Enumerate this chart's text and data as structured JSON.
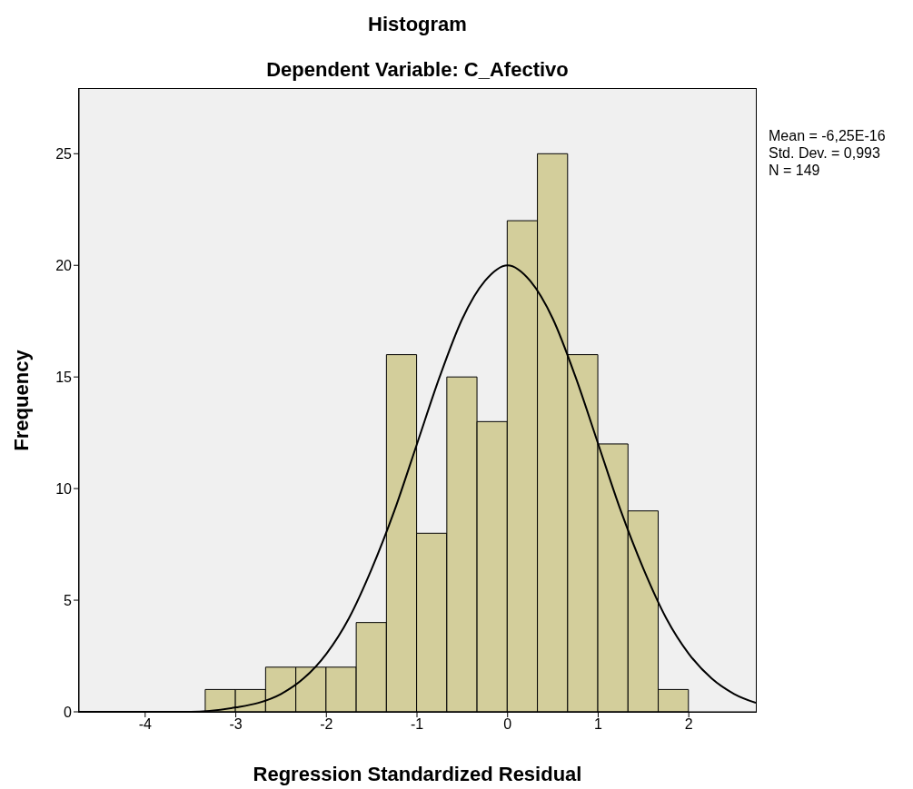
{
  "chart_data": {
    "type": "histogram",
    "title": "Histogram",
    "subtitle": "Dependent Variable: C_Afectivo",
    "xlabel": "Regression Standardized Residual",
    "ylabel": "Frequency",
    "annotations": [
      "Mean = -6,25E-16",
      "Std. Dev. = 0,993",
      "N = 149"
    ],
    "bins": [
      -3.333,
      -3,
      -2.667,
      -2.333,
      -2,
      -1.667,
      -1.333,
      -1,
      -0.667,
      -0.333,
      0,
      0.333,
      0.667,
      1,
      1.333,
      1.667,
      2
    ],
    "values": [
      1,
      1,
      2,
      2,
      2,
      4,
      16,
      8,
      15,
      13,
      22,
      25,
      16,
      12,
      9,
      1
    ],
    "color": "#d3ce9b",
    "series": [
      {
        "type": "line",
        "color": "#000000",
        "x": [
          -4.73,
          -4.5,
          -4,
          -3.5,
          -3,
          -2.75,
          -2.5,
          -2.25,
          -2,
          -1.75,
          -1.5,
          -1.25,
          -1,
          -0.75,
          -0.5,
          -0.25,
          0,
          0.25,
          0.5,
          0.75,
          1,
          1.25,
          1.5,
          1.75,
          2,
          2.25,
          2.5,
          2.74
        ],
        "values": [
          0,
          0,
          0,
          0,
          0.2,
          0.4,
          0.8,
          1.5,
          2.6,
          4.2,
          6.4,
          9,
          12,
          15,
          17.6,
          19.3,
          20,
          19.3,
          17.6,
          15,
          12,
          9,
          6.4,
          4.2,
          2.6,
          1.5,
          0.8,
          0.4
        ]
      }
    ],
    "xlim": [
      -4.73,
      2.74
    ],
    "xticks": [
      -4,
      -3,
      -2,
      -1,
      0,
      1,
      2
    ],
    "ylim": [
      0,
      27.9
    ],
    "yticks": [
      0,
      5,
      10,
      15,
      20,
      25
    ]
  }
}
